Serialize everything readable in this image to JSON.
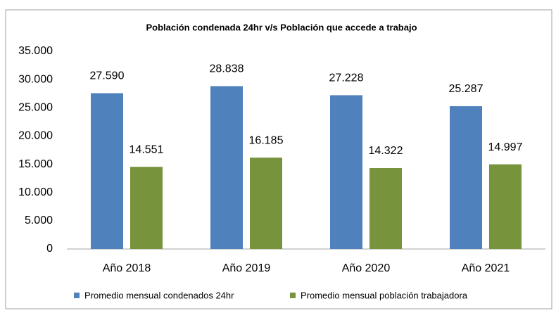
{
  "chart_data": {
    "type": "bar",
    "title": "Población condenada 24hr v/s Población que accede a trabajo",
    "categories": [
      "Año 2018",
      "Año 2019",
      "Año 2020",
      "Año 2021"
    ],
    "series": [
      {
        "name": "Promedio mensual condenados 24hr",
        "color": "#4f81bd",
        "values": [
          27590,
          28838,
          27228,
          25287
        ],
        "value_labels": [
          "27.590",
          "28.838",
          "27.228",
          "25.287"
        ]
      },
      {
        "name": "Promedio mensual población trabajadora",
        "color": "#77933c",
        "values": [
          14551,
          16185,
          14322,
          14997
        ],
        "value_labels": [
          "14.551",
          "16.185",
          "14.322",
          "14.997"
        ]
      }
    ],
    "ylim": [
      0,
      35000
    ],
    "yticks": [
      0,
      {
        "value": 5000,
        "label": "5.000"
      },
      {
        "value": 10000,
        "label": "10.000"
      },
      {
        "value": 15000,
        "label": "15.000"
      },
      {
        "value": 20000,
        "label": "20.000"
      },
      {
        "value": 25000,
        "label": "25.000"
      },
      {
        "value": 30000,
        "label": "30.000"
      },
      {
        "value": 35000,
        "label": "35.000"
      }
    ],
    "grid": false,
    "legend": "bottom"
  }
}
